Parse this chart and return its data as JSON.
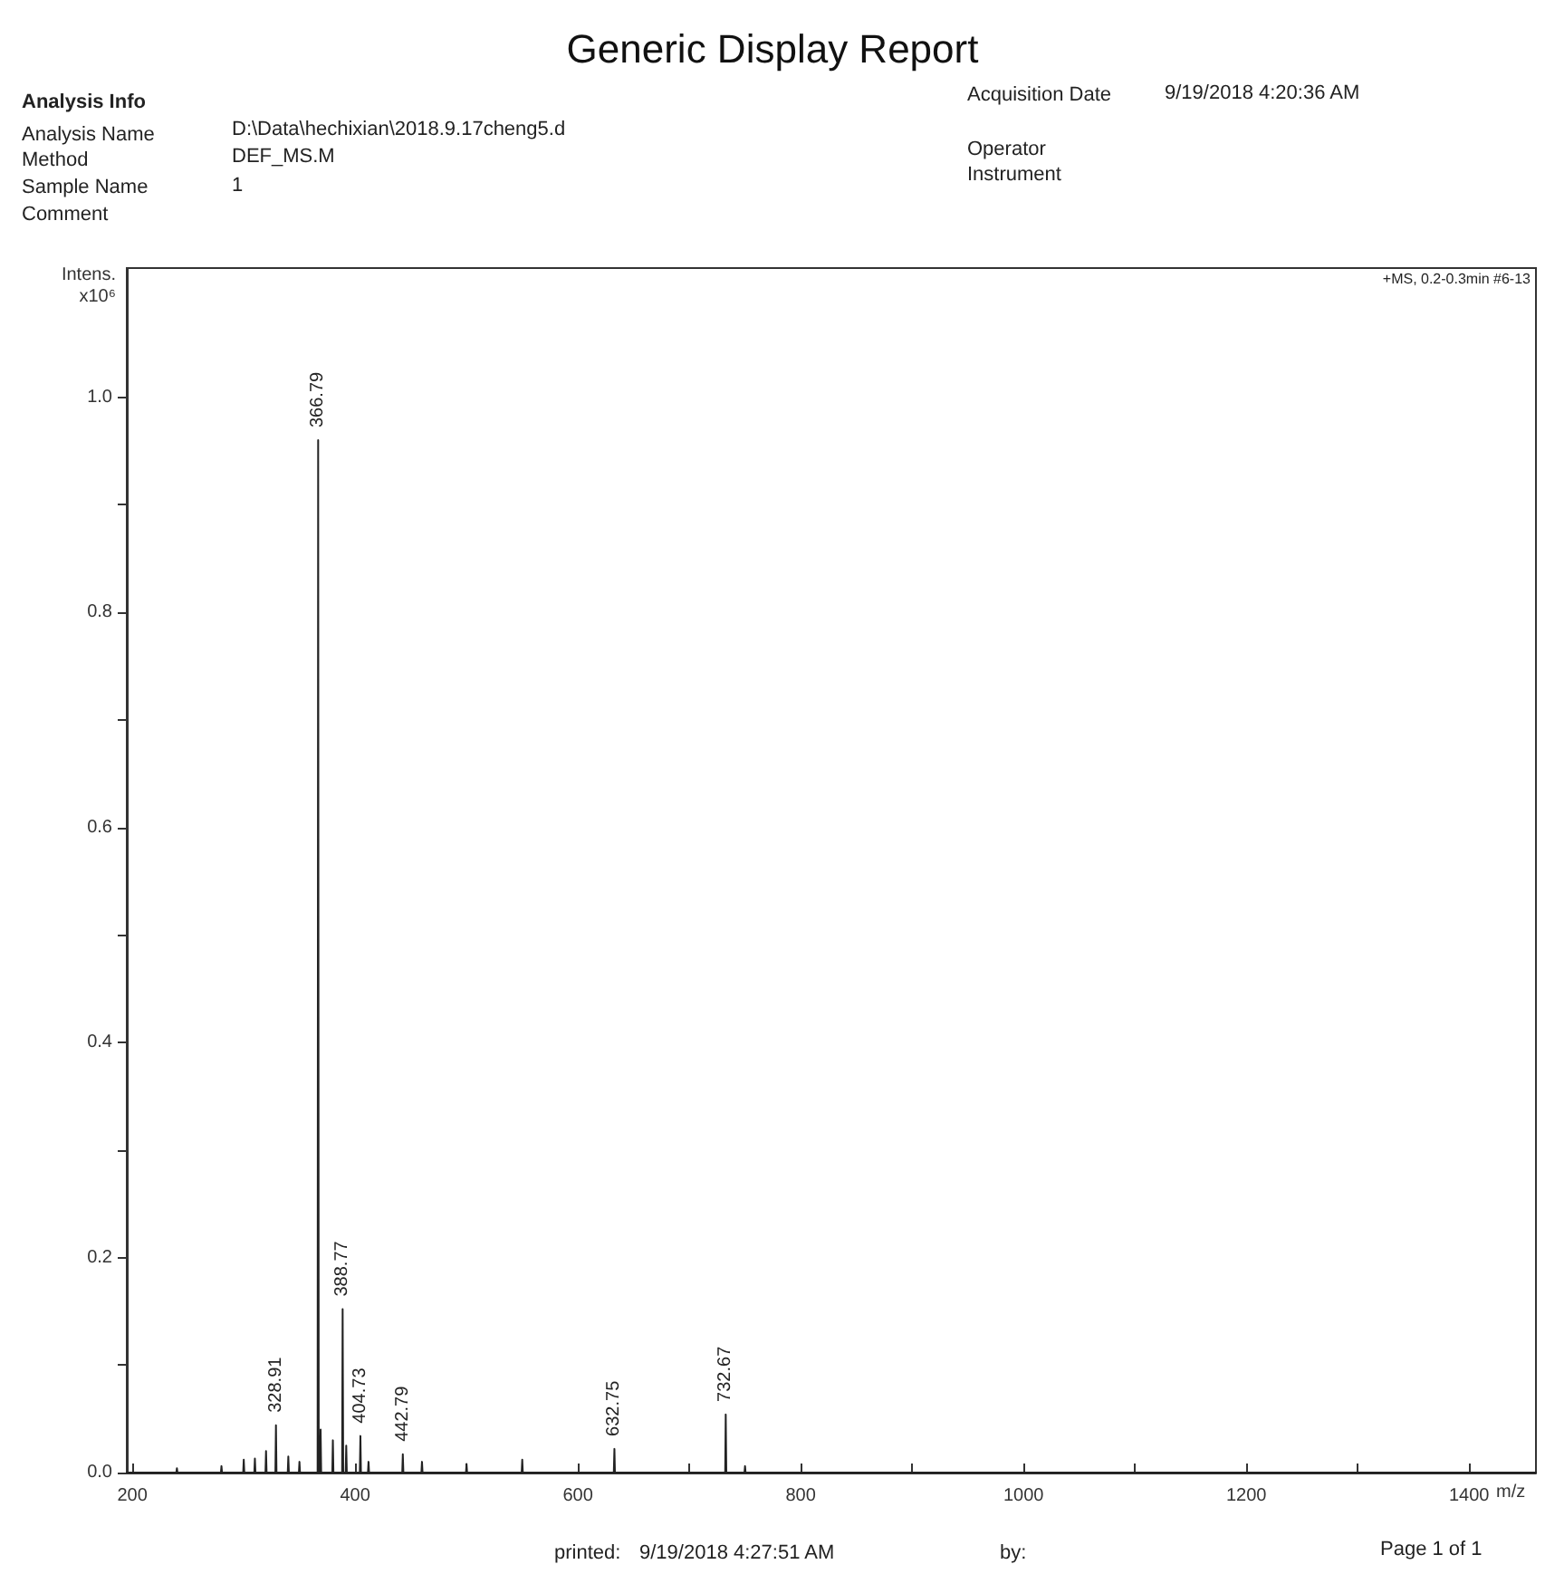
{
  "chart_data": {
    "type": "line",
    "title": "Generic Display Report",
    "xlabel": "m/z",
    "ylabel": "Intens. x10⁶",
    "annotations": [
      "Analysis Info",
      "Analysis Name",
      "D:\\Data\\hechixian\\2018.9.17cheng5.d",
      "Method",
      "DEF_MS.M",
      "Sample Name",
      "1",
      "Comment",
      "Acquisition Date",
      "9/19/2018 4:20:36 AM",
      "Operator",
      "Instrument",
      "+MS, 0.2-0.3min #6-13",
      "printed:",
      "9/19/2018 4:27:51 AM",
      "by:",
      "Page 1 of 1",
      {
        "text": "328.91",
        "x": 328.91,
        "y": 0.044
      },
      {
        "text": "366.79",
        "x": 366.79,
        "y": 0.96
      },
      {
        "text": "388.77",
        "x": 388.77,
        "y": 0.152
      },
      {
        "text": "404.73",
        "x": 404.73,
        "y": 0.034
      },
      {
        "text": "442.79",
        "x": 442.79,
        "y": 0.017
      },
      {
        "text": "632.75",
        "x": 632.75,
        "y": 0.022
      },
      {
        "text": "732.67",
        "x": 732.67,
        "y": 0.054
      }
    ],
    "series": [
      {
        "color": "#222222",
        "x": [
          195,
          239.5,
          240,
          240.5,
          279.5,
          280,
          280.5,
          299.5,
          300,
          300.5,
          309.5,
          310,
          310.5,
          319.5,
          320,
          320.5,
          328.4,
          328.91,
          329.4,
          339.5,
          340,
          340.5,
          349.5,
          350,
          350.5,
          366.3,
          366.79,
          367.3,
          368.5,
          369,
          369.5,
          379.5,
          380,
          380.5,
          388.3,
          388.77,
          389.3,
          391.5,
          392,
          392.5,
          404.2,
          404.73,
          405.2,
          411.5,
          412,
          412.5,
          442.3,
          442.79,
          443.3,
          459.5,
          460,
          460.5,
          499.5,
          500,
          500.5,
          549.5,
          550,
          550.5,
          632.2,
          632.75,
          633.2,
          732.2,
          732.67,
          733.2,
          749.5,
          750,
          750.5,
          1460
        ],
        "values": [
          0,
          0,
          0.004,
          0,
          0,
          0.006,
          0,
          0,
          0.012,
          0,
          0,
          0.013,
          0,
          0,
          0.02,
          0,
          0,
          0.044,
          0,
          0,
          0.015,
          0,
          0,
          0.01,
          0,
          0,
          0.96,
          0,
          0,
          0.04,
          0,
          0,
          0.03,
          0,
          0,
          0.152,
          0,
          0,
          0.025,
          0,
          0,
          0.034,
          0,
          0,
          0.01,
          0,
          0,
          0.017,
          0,
          0,
          0.01,
          0,
          0,
          0.008,
          0,
          0,
          0.012,
          0,
          0,
          0.022,
          0,
          0,
          0.054,
          0,
          0,
          0.006,
          0,
          0
        ]
      }
    ],
    "xlim": [
      195,
      1460
    ],
    "ylim": [
      0,
      1.12
    ],
    "xticks": [
      200,
      {
        "value": 300,
        "label": null
      },
      400,
      {
        "value": 500,
        "label": null
      },
      600,
      {
        "value": 700,
        "label": null
      },
      800,
      {
        "value": 900,
        "label": null
      },
      1000,
      {
        "value": 1100,
        "label": null
      },
      1200,
      {
        "value": 1300,
        "label": null
      },
      1400
    ],
    "yticks": [
      {
        "value": 0,
        "label": "0.0"
      },
      {
        "value": 0.1,
        "label": null
      },
      {
        "value": 0.2,
        "label": "0.2"
      },
      {
        "value": 0.3,
        "label": null
      },
      {
        "value": 0.4,
        "label": "0.4"
      },
      {
        "value": 0.5,
        "label": null
      },
      {
        "value": 0.6,
        "label": "0.6"
      },
      {
        "value": 0.7,
        "label": null
      },
      {
        "value": 0.8,
        "label": "0.8"
      },
      {
        "value": 0.9,
        "label": null
      },
      {
        "value": 1.0,
        "label": "1.0"
      }
    ],
    "grid": false,
    "marker": "none",
    "line_style": "solid"
  }
}
